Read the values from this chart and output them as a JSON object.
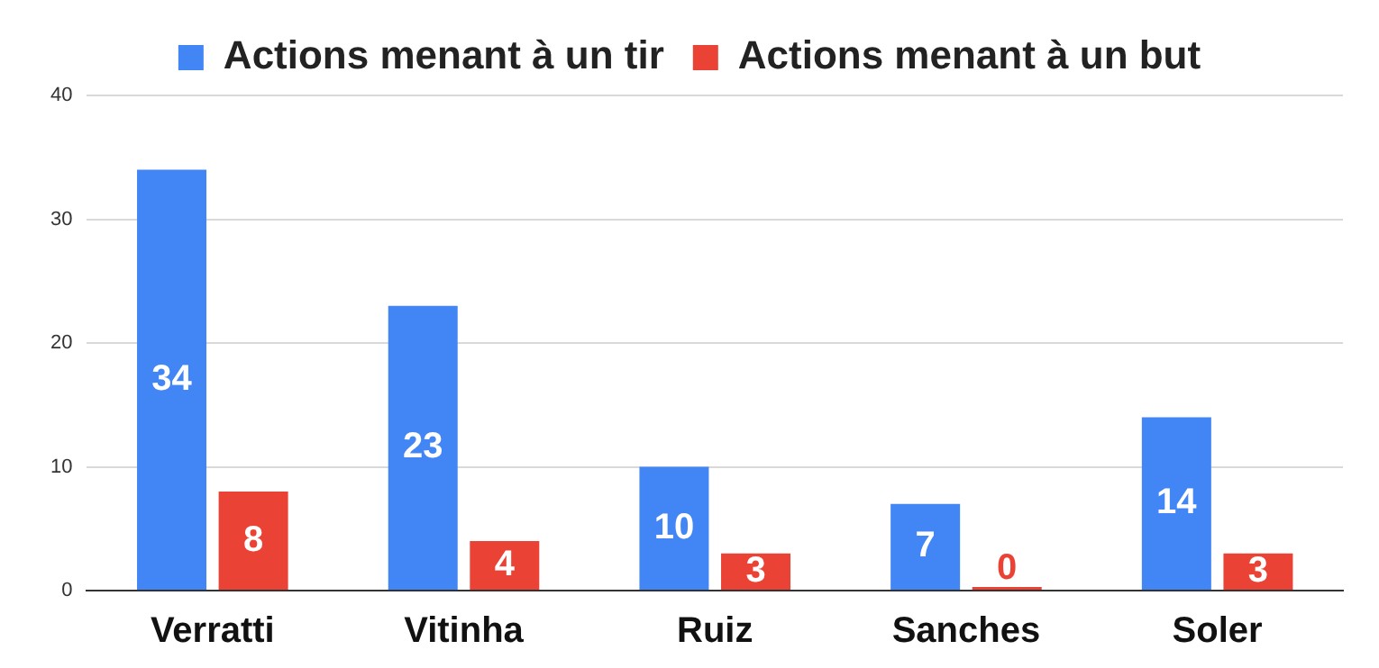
{
  "chart_data": {
    "type": "bar",
    "categories": [
      "Verratti",
      "Vitinha",
      "Ruiz",
      "Sanches",
      "Soler"
    ],
    "series": [
      {
        "name": "Actions menant à un tir",
        "color": "#4285f4",
        "values": [
          34,
          23,
          10,
          7,
          14
        ]
      },
      {
        "name": "Actions menant à un but",
        "color": "#ea4335",
        "values": [
          8,
          4,
          3,
          0,
          3
        ]
      }
    ],
    "ylim": [
      0,
      40
    ],
    "yticks": [
      0,
      10,
      20,
      30,
      40
    ],
    "grid": "y",
    "legend": "top",
    "data_labels": true
  }
}
